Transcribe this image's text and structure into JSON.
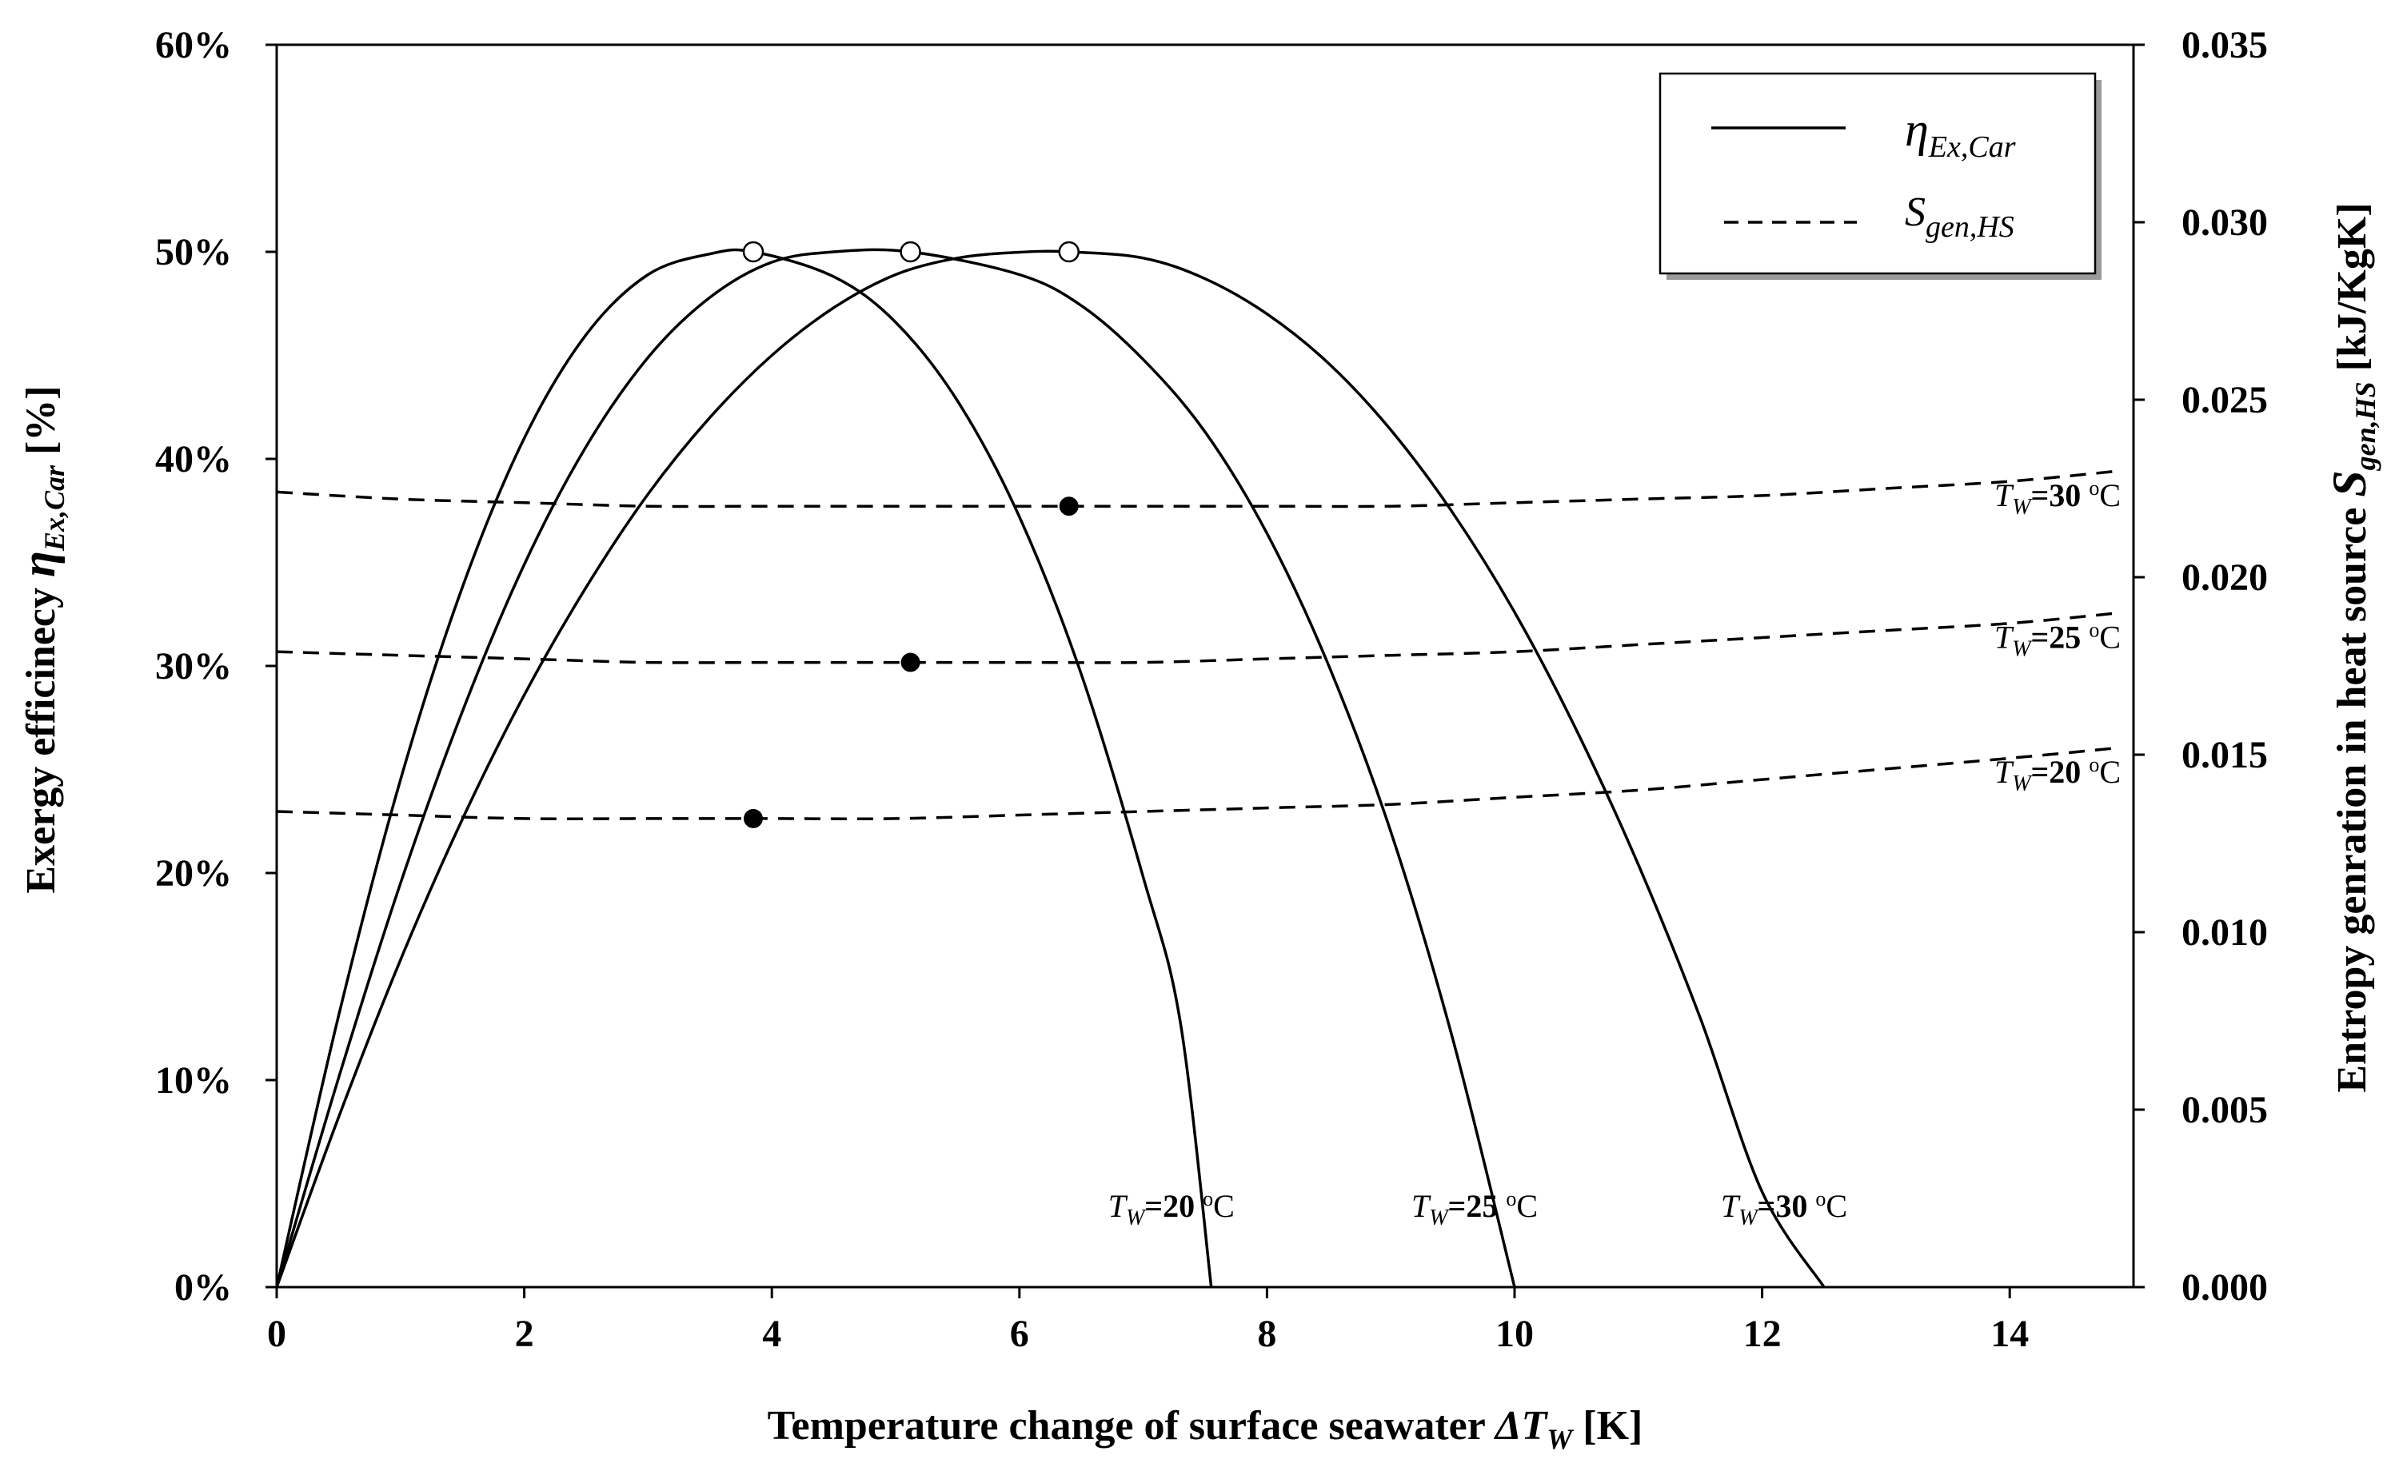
{
  "chart_data": {
    "type": "line",
    "title": "",
    "x_axis": {
      "label_main": "Temperature change of surface seawater ",
      "label_symbol": "ΔT",
      "label_sub": "W",
      "label_unit": " [K]",
      "range": [
        0,
        15
      ],
      "ticks": [
        "0",
        "2",
        "4",
        "6",
        "8",
        "10",
        "12",
        "14"
      ]
    },
    "y_left": {
      "label_main": "Exergy efficinecy ",
      "label_symbol": "η",
      "label_sub": "Ex,Car",
      "label_unit": " [%]",
      "range": [
        0,
        60
      ],
      "ticks": [
        "0%",
        "10%",
        "20%",
        "30%",
        "40%",
        "50%",
        "60%"
      ]
    },
    "y_right": {
      "label_main": "Entropy genration in heat source ",
      "label_symbol": "S",
      "label_sub": "gen,HS",
      "label_unit": " [kJ/KgK]",
      "range": [
        0,
        0.035
      ],
      "ticks": [
        "0.000",
        "0.005",
        "0.010",
        "0.015",
        "0.020",
        "0.025",
        "0.030",
        "0.035"
      ]
    },
    "legend": {
      "position": "top-right",
      "items": [
        {
          "symbol": "η",
          "sub": "Ex,Car",
          "line_style": "solid"
        },
        {
          "symbol": "S",
          "sub": "gen,HS",
          "line_style": "dashed"
        }
      ]
    },
    "series": [
      {
        "name": "η Ex,Car, TW=20 °C",
        "axis": "left",
        "style": "solid",
        "label_placement": "bottom",
        "label_prefix": "T",
        "label_sub": "W",
        "label_value": "=20 ",
        "label_sup": "o",
        "label_unit": "C",
        "x": [
          0,
          0.5,
          1.0,
          1.5,
          2.0,
          2.5,
          3.0,
          3.5,
          3.85,
          4.5,
          5.0,
          5.5,
          6.0,
          6.5,
          7.0,
          7.3,
          7.55
        ],
        "y": [
          0,
          13.1,
          24.5,
          33.8,
          41.0,
          46.0,
          48.9,
          49.9,
          50.0,
          48.8,
          46.6,
          42.8,
          37.2,
          29.6,
          19.8,
          12.8,
          0
        ],
        "max_point": {
          "x": 3.85,
          "y": 50
        }
      },
      {
        "name": "η Ex,Car, TW=25 °C",
        "axis": "left",
        "style": "solid",
        "label_placement": "bottom",
        "label_prefix": "T",
        "label_sub": "W",
        "label_value": "=25 ",
        "label_sup": "o",
        "label_unit": "C",
        "x": [
          0,
          0.5,
          1.0,
          1.5,
          2.0,
          2.5,
          3.0,
          3.5,
          4.0,
          4.5,
          5.12,
          6.0,
          6.5,
          7.0,
          7.5,
          8.0,
          8.5,
          9.0,
          9.5,
          10.0
        ],
        "y": [
          0,
          10.1,
          19.5,
          27.8,
          34.9,
          40.6,
          44.9,
          47.8,
          49.5,
          50.0,
          50.0,
          48.9,
          47.4,
          44.8,
          41.3,
          36.4,
          30.0,
          22.0,
          12.0,
          0
        ],
        "max_point": {
          "x": 5.12,
          "y": 50
        }
      },
      {
        "name": "η Ex,Car, TW=30 °C",
        "axis": "left",
        "style": "solid",
        "label_placement": "bottom",
        "label_prefix": "T",
        "label_sub": "W",
        "label_value": "=30 ",
        "label_sup": "o",
        "label_unit": "C",
        "x": [
          0,
          0.5,
          1.0,
          1.5,
          2.0,
          2.5,
          3.0,
          3.5,
          4.0,
          4.5,
          5.0,
          5.5,
          6.0,
          6.4,
          7.0,
          7.5,
          8.0,
          8.5,
          9.0,
          9.5,
          10.0,
          10.5,
          11.0,
          11.5,
          12.0,
          12.5
        ],
        "y": [
          0,
          8.2,
          15.8,
          22.6,
          28.6,
          33.8,
          38.3,
          42.0,
          45.0,
          47.3,
          48.9,
          49.7,
          49.98,
          50.0,
          49.7,
          48.7,
          47.0,
          44.6,
          41.4,
          37.4,
          32.6,
          26.9,
          20.4,
          13.0,
          4.6,
          0
        ],
        "max_point": {
          "x": 6.4,
          "y": 50
        }
      },
      {
        "name": "S gen,HS, TW=20 °C",
        "axis": "right",
        "style": "dashed",
        "label_placement": "right",
        "label_prefix": "T",
        "label_sub": "W",
        "label_value": "=20 ",
        "label_sup": "o",
        "label_unit": "C",
        "x": [
          0,
          1,
          2,
          3,
          4,
          5,
          6,
          7,
          8,
          9,
          10,
          11,
          12,
          13,
          14,
          14.9
        ],
        "y": [
          0.0134,
          0.0133,
          0.0132,
          0.0132,
          0.0132,
          0.0132,
          0.0133,
          0.0134,
          0.0135,
          0.0136,
          0.0138,
          0.014,
          0.0143,
          0.0146,
          0.0149,
          0.0152
        ],
        "marker_point": {
          "x": 3.85,
          "y": 0.0132
        }
      },
      {
        "name": "S gen,HS, TW=25 °C",
        "axis": "right",
        "style": "dashed",
        "label_placement": "right",
        "label_prefix": "T",
        "label_sub": "W",
        "label_value": "=25 ",
        "label_sup": "o",
        "label_unit": "C",
        "x": [
          0,
          1,
          2,
          3,
          4,
          5,
          6,
          7,
          8,
          9,
          10,
          11,
          12,
          13,
          14,
          14.9
        ],
        "y": [
          0.0179,
          0.0178,
          0.0177,
          0.0176,
          0.0176,
          0.0176,
          0.0176,
          0.0176,
          0.0177,
          0.0178,
          0.0179,
          0.0181,
          0.0183,
          0.0185,
          0.0187,
          0.019
        ],
        "marker_point": {
          "x": 5.12,
          "y": 0.0176
        }
      },
      {
        "name": "S gen,HS, TW=30 °C",
        "axis": "right",
        "style": "dashed",
        "label_placement": "right",
        "label_prefix": "T",
        "label_sub": "W",
        "label_value": "=30 ",
        "label_sup": "o",
        "label_unit": "C",
        "x": [
          0,
          1,
          2,
          3,
          4,
          5,
          6,
          7,
          8,
          9,
          10,
          11,
          12,
          13,
          14,
          14.9
        ],
        "y": [
          0.0224,
          0.0222,
          0.0221,
          0.022,
          0.022,
          0.022,
          0.022,
          0.022,
          0.022,
          0.022,
          0.0221,
          0.0222,
          0.0223,
          0.0225,
          0.0227,
          0.023
        ],
        "marker_point": {
          "x": 6.4,
          "y": 0.022
        }
      }
    ]
  }
}
